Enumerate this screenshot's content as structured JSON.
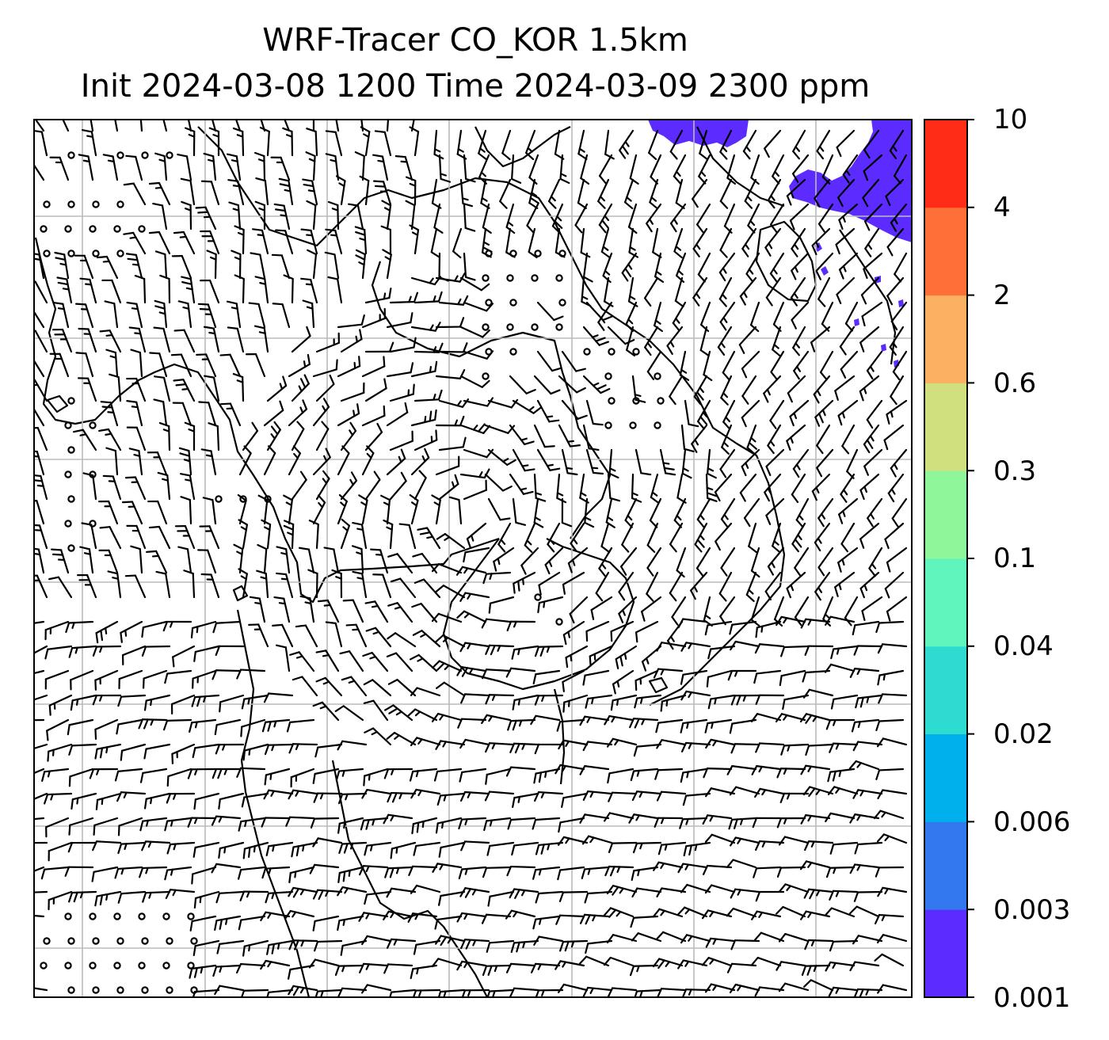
{
  "title": {
    "line1": "WRF-Tracer CO_KOR 1.5km",
    "line2": "Init 2024-03-08 1200 Time 2024-03-09 2300 ppm"
  },
  "colorbar": {
    "levels": [
      "0.001",
      "0.003",
      "0.006",
      "0.02",
      "0.04",
      "0.1",
      "0.3",
      "0.6",
      "2",
      "4",
      "10"
    ],
    "colors": [
      "#5c2bff",
      "#3478f0",
      "#00b0ec",
      "#2ddbd0",
      "#5ff5bd",
      "#8ff79a",
      "#d0e07e",
      "#fbb062",
      "#ff7038",
      "#ff2d18"
    ]
  },
  "map": {
    "variable": "CO tracer concentration",
    "overlays": [
      "wind-barbs",
      "coastlines",
      "gridlines",
      "tracer-shading"
    ],
    "barb_color": "#000000",
    "grid_color": "#bbbbbb",
    "tracer_fill_color": "#5c2bff"
  }
}
